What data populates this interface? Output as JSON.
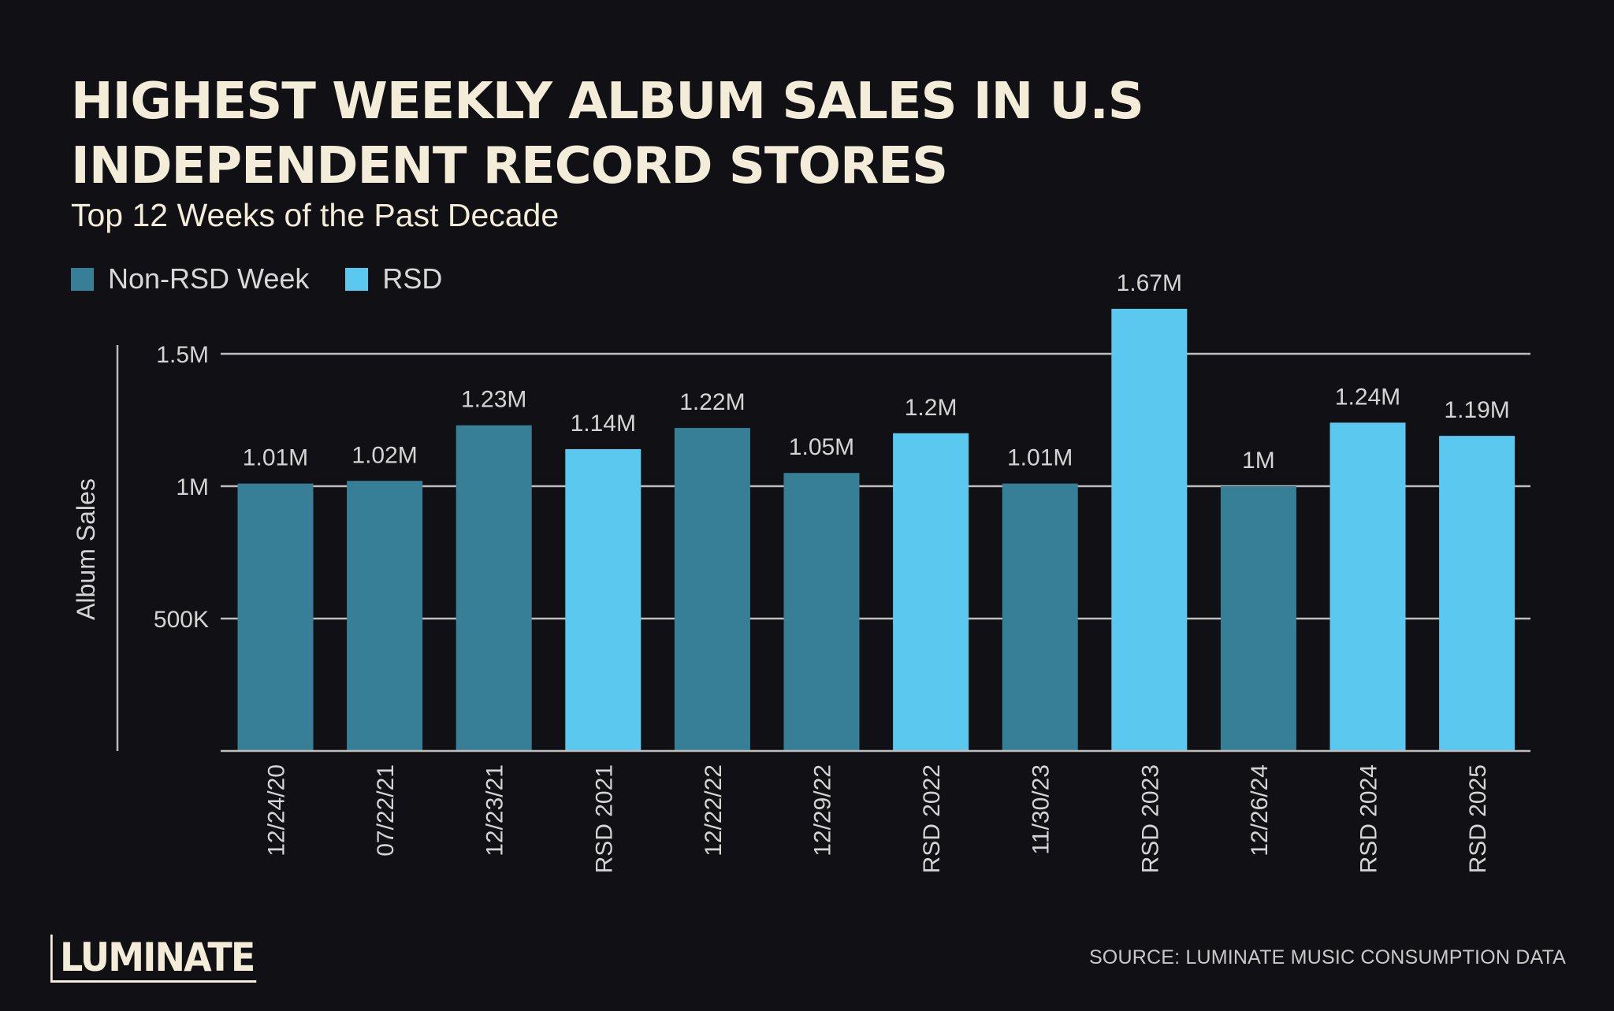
{
  "header": {
    "title_line1": "HIGHEST WEEKLY ALBUM SALES IN U.S",
    "title_line2": "INDEPENDENT RECORD STORES",
    "subtitle": "Top 12 Weeks of the Past Decade"
  },
  "legend": {
    "items": [
      {
        "label": "Non-RSD Week",
        "color": "#367f97"
      },
      {
        "label": "RSD",
        "color": "#5bc8ef"
      }
    ]
  },
  "chart_data": {
    "type": "bar",
    "title": "HIGHEST WEEKLY ALBUM SALES IN U.S INDEPENDENT RECORD STORES",
    "subtitle": "Top 12 Weeks of the Past Decade",
    "ylabel": "Album Sales",
    "xlabel": "",
    "ylim": [
      0,
      1500000
    ],
    "yticks": [
      {
        "value": 500000,
        "label": "500K"
      },
      {
        "value": 1000000,
        "label": "1M"
      },
      {
        "value": 1500000,
        "label": "1.5M"
      }
    ],
    "grid": true,
    "legend_position": "top-left",
    "categories": [
      "12/24/20",
      "07/22/21",
      "12/23/21",
      "RSD 2021",
      "12/22/22",
      "12/29/22",
      "RSD 2022",
      "11/30/23",
      "RSD 2023",
      "12/26/24",
      "RSD 2024",
      "RSD 2025"
    ],
    "values": [
      1010000,
      1020000,
      1230000,
      1140000,
      1220000,
      1050000,
      1200000,
      1010000,
      1670000,
      1000000,
      1240000,
      1190000
    ],
    "value_labels": [
      "1.01M",
      "1.02M",
      "1.23M",
      "1.14M",
      "1.22M",
      "1.05M",
      "1.2M",
      "1.01M",
      "1.67M",
      "1M",
      "1.24M",
      "1.19M"
    ],
    "series_type": [
      "Non-RSD Week",
      "Non-RSD Week",
      "Non-RSD Week",
      "RSD",
      "Non-RSD Week",
      "Non-RSD Week",
      "RSD",
      "Non-RSD Week",
      "RSD",
      "Non-RSD Week",
      "RSD",
      "RSD"
    ]
  },
  "footer": {
    "logo": "LUMINATE",
    "source": "SOURCE: LUMINATE MUSIC CONSUMPTION DATA"
  },
  "colors": {
    "background": "#111115",
    "title": "#f3ecd8",
    "non_rsd": "#367f97",
    "rsd": "#5bc8ef",
    "grid": "#bdbdbd",
    "label": "#d4d4d4"
  }
}
